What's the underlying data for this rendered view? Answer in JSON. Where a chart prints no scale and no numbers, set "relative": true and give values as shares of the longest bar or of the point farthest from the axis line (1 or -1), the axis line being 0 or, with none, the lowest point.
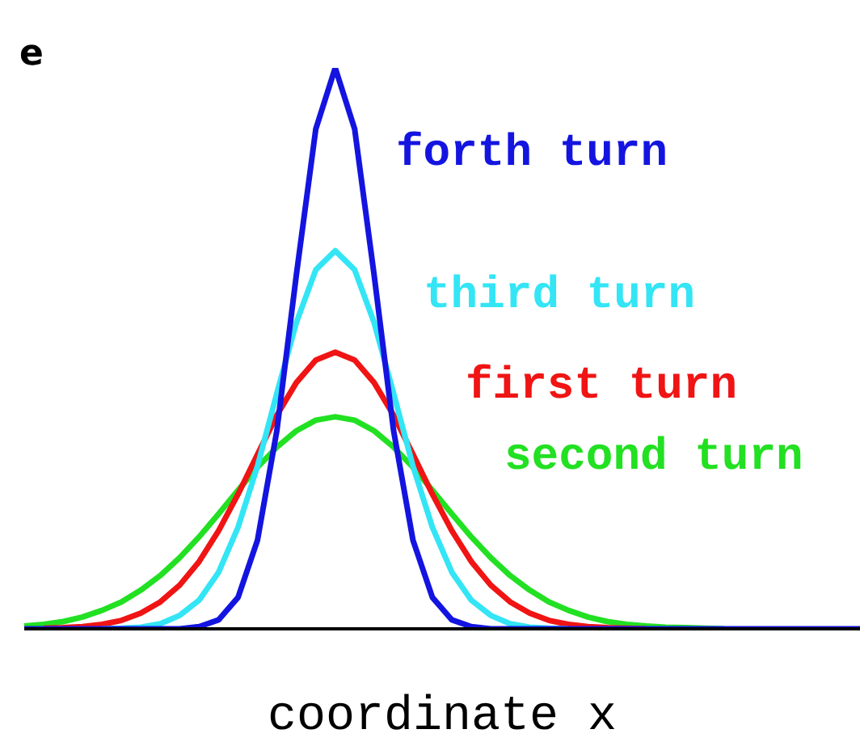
{
  "chart_data": {
    "type": "line",
    "relative": true,
    "xlabel": "coordinate x",
    "annotations": [
      "e"
    ],
    "categories": [
      null,
      null,
      null,
      null,
      null,
      null,
      null,
      null,
      null,
      null,
      null,
      null,
      null,
      null,
      null,
      null,
      null,
      null,
      null,
      null,
      null,
      null,
      null,
      null,
      null,
      null,
      null,
      null,
      null,
      null,
      null,
      null,
      null,
      null,
      null,
      null,
      null,
      null,
      null,
      null,
      null,
      null,
      null,
      null
    ],
    "series": [
      {
        "name": "forth turn",
        "color": "#1414e0",
        "values": [
          0,
          0,
          0,
          0,
          0,
          0,
          0,
          0,
          0,
          0.004,
          0.016,
          0.056,
          0.158,
          0.354,
          0.631,
          0.891,
          1,
          0.891,
          0.631,
          0.354,
          0.158,
          0.056,
          0.016,
          0.004,
          0,
          0,
          0,
          0,
          0,
          0,
          0,
          0,
          0,
          0,
          0,
          0,
          0,
          0,
          0,
          0,
          0,
          0,
          0,
          0
        ]
      },
      {
        "name": "third turn",
        "color": "#33e5f5",
        "values": [
          null,
          null,
          null,
          null,
          0,
          0.001,
          0.003,
          0.009,
          0.024,
          0.051,
          0.101,
          0.181,
          0.29,
          0.42,
          0.546,
          0.64,
          0.674,
          0.64,
          0.546,
          0.42,
          0.29,
          0.181,
          0.101,
          0.051,
          0.024,
          0.009,
          0.003,
          0.001,
          0,
          null,
          null,
          null,
          null,
          null,
          null,
          null,
          null,
          null,
          null,
          null,
          null,
          null,
          null,
          null
        ]
      },
      {
        "name": "first turn",
        "color": "#f01414",
        "values": [
          null,
          0.001,
          0.002,
          0.004,
          0.008,
          0.015,
          0.028,
          0.048,
          0.078,
          0.12,
          0.175,
          0.24,
          0.311,
          0.381,
          0.439,
          0.479,
          0.493,
          0.479,
          0.439,
          0.381,
          0.311,
          0.24,
          0.175,
          0.12,
          0.078,
          0.048,
          0.028,
          0.015,
          0.008,
          0.004,
          0.002,
          0.001,
          0,
          null,
          null,
          null,
          null,
          null,
          null,
          null,
          null,
          null,
          null,
          null
        ]
      },
      {
        "name": "second turn",
        "color": "#22e022",
        "values": [
          0.005,
          0.008,
          0.013,
          0.021,
          0.033,
          0.048,
          0.069,
          0.095,
          0.127,
          0.164,
          0.205,
          0.247,
          0.288,
          0.324,
          0.353,
          0.372,
          0.378,
          0.372,
          0.353,
          0.324,
          0.288,
          0.247,
          0.205,
          0.164,
          0.127,
          0.095,
          0.069,
          0.048,
          0.033,
          0.021,
          0.013,
          0.008,
          0.005,
          0.003,
          0.002,
          0.001,
          0,
          null,
          null,
          null,
          null,
          null,
          null,
          null
        ]
      }
    ]
  }
}
